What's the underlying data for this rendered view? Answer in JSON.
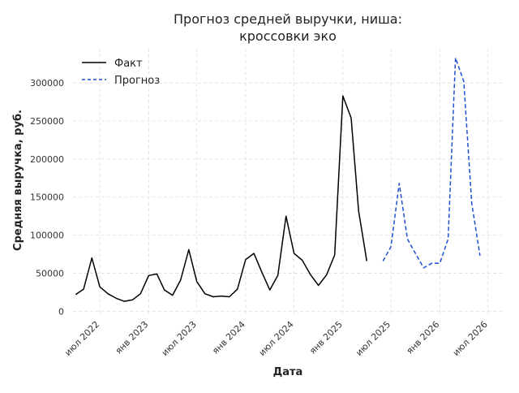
{
  "chart_data": {
    "type": "line",
    "title_lines": [
      "Прогноз средней выручки, ниша:",
      "кроссовки эко"
    ],
    "xlabel": "Дата",
    "ylabel": "Средняя выручка, руб.",
    "ylim": [
      -5000,
      345000
    ],
    "xlim": [
      "2022-03-22",
      "2026-09-01"
    ],
    "yticks": [
      0,
      50000,
      100000,
      150000,
      200000,
      250000,
      300000
    ],
    "ytick_labels": [
      "0",
      "50000",
      "100000",
      "150000",
      "200000",
      "250000",
      "300000"
    ],
    "xticks": [
      "2022-07-01",
      "2023-01-01",
      "2023-07-01",
      "2024-01-01",
      "2024-07-01",
      "2025-01-01",
      "2025-07-01",
      "2026-01-01",
      "2026-07-01"
    ],
    "xtick_labels": [
      "июл 2022",
      "янв 2023",
      "июл 2023",
      "янв 2024",
      "июл 2024",
      "янв 2025",
      "июл 2025",
      "янв 2026",
      "июл 2026"
    ],
    "grid": true,
    "legend_position": "top-left",
    "series": [
      {
        "name": "Факт",
        "color": "#000000",
        "style": "solid",
        "x": [
          "2022-04-01",
          "2022-05-01",
          "2022-06-01",
          "2022-07-01",
          "2022-08-01",
          "2022-09-01",
          "2022-10-01",
          "2022-11-01",
          "2022-12-01",
          "2023-01-01",
          "2023-02-01",
          "2023-03-01",
          "2023-04-01",
          "2023-05-01",
          "2023-06-01",
          "2023-07-01",
          "2023-08-01",
          "2023-09-01",
          "2023-10-01",
          "2023-11-01",
          "2023-12-01",
          "2024-01-01",
          "2024-02-01",
          "2024-03-01",
          "2024-04-01",
          "2024-05-01",
          "2024-06-01",
          "2024-07-01",
          "2024-08-01",
          "2024-09-01",
          "2024-10-01",
          "2024-11-01",
          "2024-12-01",
          "2025-01-01",
          "2025-02-01",
          "2025-03-01",
          "2025-04-01",
          "2025-05-01",
          "2025-06-01"
        ],
        "values": [
          22000,
          29000,
          70000,
          32000,
          23000,
          17000,
          13000,
          15000,
          23000,
          47000,
          49000,
          28000,
          21000,
          41000,
          81000,
          39000,
          23000,
          19000,
          20000,
          19000,
          29000,
          68000,
          76000,
          52000,
          28000,
          47000,
          125000,
          76000,
          67000,
          48000,
          34000,
          48000,
          74000,
          283000,
          254000,
          132000,
          66000,
          null,
          null
        ]
      },
      {
        "name": "Прогноз",
        "color": "#1f4fd1",
        "style": "dashed",
        "x": [
          "2025-06-01",
          "2025-07-01",
          "2025-08-01",
          "2025-09-01",
          "2025-10-01",
          "2025-11-01",
          "2025-12-01",
          "2026-01-01",
          "2026-02-01",
          "2026-03-01",
          "2026-04-01",
          "2026-05-01",
          "2026-06-01"
        ],
        "values": [
          66000,
          85000,
          168000,
          95000,
          76000,
          57000,
          63000,
          63000,
          95000,
          333000,
          302000,
          142000,
          73000
        ]
      }
    ]
  }
}
